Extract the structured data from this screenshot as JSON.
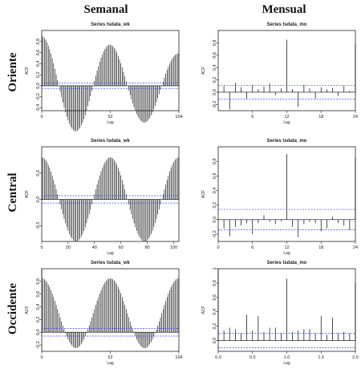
{
  "headers": {
    "col_weekly": "Semanal",
    "col_monthly": "Mensual"
  },
  "rows": [
    "Oriente",
    "Central",
    "Occidente"
  ],
  "colors": {
    "bars": "#000000",
    "ci": "#3344ff",
    "frame": "#000000"
  },
  "chart_data": [
    {
      "type": "bar",
      "title": "Series  tsdata_wk",
      "xlabel": "Lag",
      "ylabel": "ACF",
      "xlim": [
        0,
        104
      ],
      "ylim": [
        -0.45,
        1.0
      ],
      "xticks": [
        0,
        52,
        104
      ],
      "yticks": [
        -0.4,
        -0.2,
        0.0,
        0.2,
        0.4,
        0.6,
        0.8
      ],
      "ci": 0.05,
      "pattern": "cos52",
      "amp": 0.9,
      "decay": 0.35,
      "step": 1,
      "maxlag": 104,
      "grid": false,
      "legend": "none"
    },
    {
      "type": "bar",
      "title": "Series  tsdata_mo",
      "xlabel": "Lag",
      "ylabel": "ACF",
      "xlim": [
        0,
        24
      ],
      "ylim": [
        -0.3,
        1.0
      ],
      "xticks": [
        6,
        12,
        18,
        24
      ],
      "yticks": [
        -0.2,
        0.0,
        0.2,
        0.4,
        0.6,
        0.8
      ],
      "ci": 0.11,
      "x": [
        1,
        2,
        3,
        4,
        5,
        6,
        7,
        8,
        9,
        10,
        11,
        12,
        13,
        14,
        15,
        16,
        17,
        18,
        19,
        20,
        21,
        22,
        23,
        24
      ],
      "values": [
        0.1,
        -0.28,
        0.15,
        0.08,
        -0.1,
        0.12,
        0.05,
        0.09,
        0.14,
        -0.05,
        0.06,
        0.85,
        0.05,
        -0.24,
        0.12,
        0.06,
        -0.1,
        0.08,
        0.05,
        0.07,
        -0.06,
        0.1,
        0.02,
        0.78
      ],
      "grid": false,
      "legend": "none"
    },
    {
      "type": "bar",
      "title": "Series  tsdata_wk",
      "xlabel": "Lag",
      "ylabel": "ACF",
      "xlim": [
        0,
        104
      ],
      "ylim": [
        -0.8,
        1.0
      ],
      "xticks": [
        0,
        20,
        40,
        60,
        80,
        100
      ],
      "yticks": [
        -0.5,
        0.0,
        0.5
      ],
      "ci": 0.07,
      "pattern": "cos52",
      "amp": 0.8,
      "decay": 0.0,
      "step": 1,
      "maxlag": 104,
      "grid": false,
      "legend": "none"
    },
    {
      "type": "bar",
      "title": "Series  tsdata_mo",
      "xlabel": "Lag",
      "ylabel": "ACF",
      "xlim": [
        0,
        24
      ],
      "ylim": [
        -0.3,
        1.0
      ],
      "xticks": [
        0,
        6,
        12,
        18,
        24
      ],
      "yticks": [
        -0.2,
        0.0,
        0.2,
        0.4,
        0.6,
        0.8
      ],
      "ci": 0.14,
      "x": [
        1,
        2,
        3,
        4,
        5,
        6,
        7,
        8,
        9,
        10,
        11,
        12,
        13,
        14,
        15,
        16,
        17,
        18,
        19,
        20,
        21,
        22,
        23,
        24
      ],
      "values": [
        -0.12,
        -0.23,
        -0.1,
        -0.08,
        -0.05,
        -0.2,
        -0.05,
        0.06,
        -0.03,
        -0.06,
        -0.02,
        0.9,
        -0.1,
        -0.24,
        -0.06,
        -0.03,
        -0.05,
        -0.16,
        -0.12,
        0.04,
        -0.05,
        -0.08,
        -0.14,
        0.85
      ],
      "grid": false,
      "legend": "none"
    },
    {
      "type": "bar",
      "title": "Series  tsdata_wk",
      "xlabel": "Lag",
      "ylabel": "ACF",
      "xlim": [
        0,
        104
      ],
      "ylim": [
        -0.3,
        1.0
      ],
      "xticks": [
        0,
        52,
        104
      ],
      "yticks": [
        -0.2,
        0.0,
        0.2,
        0.4,
        0.6,
        0.8
      ],
      "ci": 0.06,
      "pattern": "cos52",
      "amp": 0.55,
      "decay": 0.0,
      "offset": 0.3,
      "step": 1,
      "maxlag": 104,
      "grid": false,
      "legend": "none"
    },
    {
      "type": "bar",
      "title": "Series  tsdata_mo",
      "xlabel": "Lag",
      "ylabel": "ACF",
      "xlim": [
        0,
        2.0
      ],
      "ylim": [
        -0.15,
        1.0
      ],
      "xticks": [
        0.0,
        0.5,
        1.0,
        1.5,
        2.0
      ],
      "yticks": [
        0.0,
        0.2,
        0.4,
        0.6,
        0.8,
        1.0
      ],
      "ci": 0.1,
      "x": [
        0.0,
        0.0833,
        0.1667,
        0.25,
        0.3333,
        0.4167,
        0.5,
        0.5833,
        0.6667,
        0.75,
        0.8333,
        0.9167,
        1.0,
        1.0833,
        1.1667,
        1.25,
        1.3333,
        1.4167,
        1.5,
        1.5833,
        1.6667,
        1.75,
        1.8333,
        1.9167,
        2.0
      ],
      "values": [
        1.0,
        0.14,
        0.18,
        0.16,
        0.1,
        0.36,
        0.14,
        0.34,
        0.12,
        0.18,
        0.18,
        0.1,
        0.86,
        0.12,
        0.14,
        0.16,
        0.16,
        0.1,
        0.34,
        0.08,
        0.32,
        0.1,
        0.12,
        0.1,
        0.8
      ],
      "grid": false,
      "legend": "none"
    }
  ]
}
